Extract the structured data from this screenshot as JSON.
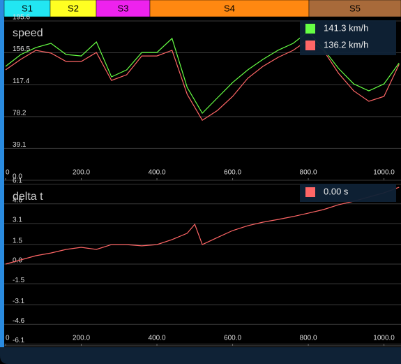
{
  "sectors": [
    {
      "label": "S1",
      "color": "#22e6f2"
    },
    {
      "label": "S2",
      "color": "#ffff22"
    },
    {
      "label": "S3",
      "color": "#ee22ee"
    },
    {
      "label": "S4",
      "color": "#ff8811"
    },
    {
      "label": "S5",
      "color": "#a86a3a"
    }
  ],
  "chart_data": [
    {
      "type": "line",
      "title": "speed",
      "x": [
        0,
        40,
        80,
        120,
        160,
        200,
        240,
        280,
        320,
        360,
        400,
        440,
        480,
        520,
        560,
        600,
        640,
        680,
        720,
        760,
        800,
        840,
        880,
        920,
        960,
        1000,
        1040
      ],
      "series": [
        {
          "name": "141.3 km/h",
          "color": "#66ff44",
          "values": [
            139.8,
            154.3,
            162.9,
            168.1,
            154.4,
            152.6,
            169.8,
            126.9,
            135.5,
            156.9,
            156.9,
            174.1,
            114.0,
            82.3,
            101.2,
            120.0,
            135.5,
            148.4,
            159.6,
            168.1,
            182.6,
            161.2,
            137.2,
            118.3,
            109.7,
            118.3,
            144.0
          ]
        },
        {
          "name": "136.2 km/h",
          "color": "#ff6666",
          "values": [
            135.5,
            148.4,
            159.5,
            156.1,
            145.8,
            145.8,
            156.9,
            122.6,
            129.5,
            152.6,
            152.6,
            159.5,
            105.5,
            73.7,
            85.7,
            102.9,
            125.2,
            139.8,
            150.9,
            159.5,
            172.4,
            159.5,
            131.2,
            109.8,
            96.9,
            102.9,
            142.3
          ]
        }
      ],
      "xlim": [
        0,
        1045
      ],
      "ylim": [
        0,
        200.7
      ],
      "xticks": [
        0,
        {
          "value": 200,
          "label": "200.0"
        },
        {
          "value": 400,
          "label": "400.0"
        },
        {
          "value": 600,
          "label": "600.0"
        },
        {
          "value": 800,
          "label": "800.0"
        },
        {
          "value": 1000,
          "label": "1000.0"
        }
      ],
      "yticks": [
        {
          "value": 0,
          "label": "0.0"
        },
        39.1,
        78.2,
        117.4,
        156.5,
        195.6
      ],
      "grid": true
    },
    {
      "type": "line",
      "title": "delta t",
      "x": [
        0,
        40,
        80,
        120,
        160,
        200,
        240,
        280,
        320,
        360,
        400,
        440,
        480,
        500,
        520,
        560,
        600,
        640,
        680,
        720,
        760,
        800,
        840,
        880,
        920,
        960,
        1000,
        1040
      ],
      "series": [
        {
          "name": "0.00 s",
          "color": "#ff6666",
          "values": [
            0.0,
            0.32,
            0.64,
            0.85,
            1.12,
            1.28,
            1.12,
            1.49,
            1.49,
            1.39,
            1.49,
            1.87,
            2.35,
            3.04,
            1.49,
            2.03,
            2.56,
            2.93,
            3.2,
            3.41,
            3.63,
            3.89,
            4.16,
            4.53,
            4.8,
            5.12,
            5.44,
            5.86
          ]
        }
      ],
      "xlim": [
        0,
        1045
      ],
      "ylim": [
        -6.24,
        6.4
      ],
      "xticks": [
        0,
        {
          "value": 200,
          "label": "200.0"
        },
        {
          "value": 400,
          "label": "400.0"
        },
        {
          "value": 600,
          "label": "600.0"
        },
        {
          "value": 800,
          "label": "800.0"
        },
        {
          "value": 1000,
          "label": "1000.0"
        }
      ],
      "yticks": [
        -6.1,
        -4.6,
        -3.1,
        -1.5,
        {
          "value": 0,
          "label": "0.0"
        },
        1.5,
        3.1,
        4.6,
        6.1
      ],
      "grid": true
    }
  ]
}
